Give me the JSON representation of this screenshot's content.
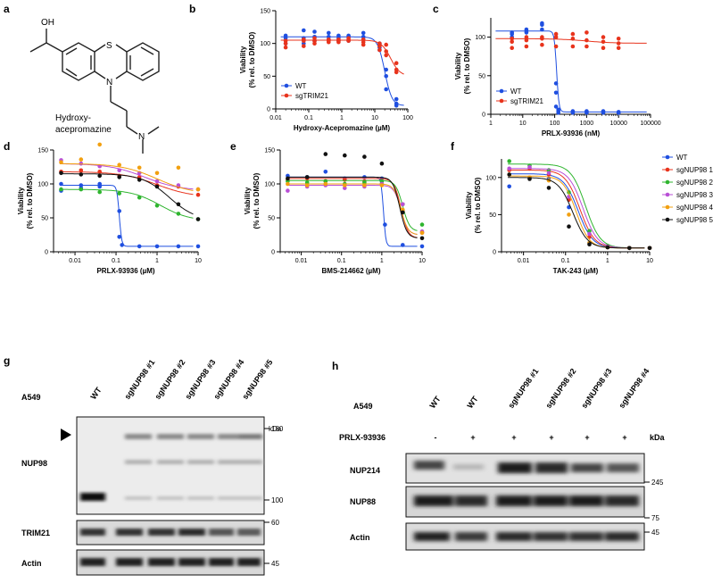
{
  "panels": {
    "a": {
      "label": "a",
      "molecule_name": [
        "Hydroxy-",
        "acepromazine"
      ],
      "atoms": {
        "oh": "OH",
        "s": "S",
        "n": "N",
        "n2": "N"
      }
    },
    "g": {
      "label": "g"
    },
    "h": {
      "label": "h"
    }
  },
  "chart_data": [
    {
      "id": "b",
      "label": "b",
      "type": "scatter",
      "xlabel": "Hydroxy-Acepromazine (µM)",
      "ylabel": [
        "Viability",
        "(% rel. to DMSO)"
      ],
      "xscale": "log",
      "xlim": [
        0.01,
        100
      ],
      "ylim": [
        0,
        150
      ],
      "xticks": [
        0.01,
        0.1,
        1,
        10,
        100
      ],
      "xticklabels": [
        "0.01",
        "0.1",
        "1",
        "10",
        "100"
      ],
      "yticks": [
        0,
        50,
        100,
        150
      ],
      "yticklabels": [
        "0",
        "50",
        "100",
        "150"
      ],
      "legend_position": "bottom-left",
      "series": [
        {
          "name": "WT",
          "color": "#1f4fe0",
          "x": [
            0.02,
            0.02,
            0.02,
            0.07,
            0.07,
            0.07,
            0.15,
            0.15,
            0.15,
            0.4,
            0.4,
            0.4,
            0.8,
            0.8,
            0.8,
            1.6,
            1.6,
            1.6,
            4.5,
            4.5,
            4.5,
            14,
            14,
            14,
            22,
            22,
            22,
            45,
            45,
            45
          ],
          "y": [
            112,
            108,
            100,
            120,
            108,
            100,
            118,
            110,
            104,
            116,
            110,
            106,
            112,
            108,
            104,
            112,
            110,
            104,
            116,
            110,
            106,
            100,
            94,
            90,
            60,
            50,
            30,
            15,
            8,
            5
          ],
          "fit": {
            "top": 110,
            "bottom": 5,
            "ic50": 20,
            "hill": 4
          }
        },
        {
          "name": "sgTRIM21",
          "color": "#e8331c",
          "x": [
            0.02,
            0.02,
            0.02,
            0.07,
            0.07,
            0.07,
            0.15,
            0.15,
            0.15,
            0.4,
            0.4,
            0.4,
            0.8,
            0.8,
            0.8,
            1.6,
            1.6,
            1.6,
            4.5,
            4.5,
            4.5,
            14,
            14,
            14,
            22,
            22,
            22,
            45,
            45,
            45
          ],
          "y": [
            104,
            100,
            94,
            106,
            104,
            96,
            108,
            104,
            100,
            106,
            104,
            102,
            106,
            104,
            102,
            108,
            106,
            104,
            106,
            102,
            98,
            100,
            96,
            90,
            98,
            88,
            82,
            70,
            60,
            56
          ],
          "fit": {
            "top": 105,
            "bottom": 50,
            "ic50": 30,
            "hill": 3
          }
        }
      ]
    },
    {
      "id": "c",
      "label": "c",
      "type": "scatter",
      "xlabel": "PRLX-93936 (nM)",
      "ylabel": [
        "Viability",
        "(% rel. to DMSO)"
      ],
      "xscale": "log",
      "xlim": [
        1,
        100000
      ],
      "ylim": [
        0,
        125
      ],
      "xticks": [
        1,
        10,
        100,
        1000,
        10000,
        100000
      ],
      "xticklabels": [
        "1",
        "10",
        "100",
        "1000",
        "10000",
        "100000"
      ],
      "yticks": [
        0,
        50,
        100
      ],
      "yticklabels": [
        "0",
        "50",
        "100"
      ],
      "legend_position": "bottom-left",
      "series": [
        {
          "name": "WT",
          "color": "#1f4fe0",
          "x": [
            4.6,
            4.6,
            4.6,
            13,
            13,
            13,
            40,
            40,
            40,
            110,
            110,
            110,
            130,
            130,
            130,
            370,
            370,
            370,
            1000,
            1000,
            1000,
            3300,
            3300,
            3300,
            10000,
            10000,
            10000
          ],
          "y": [
            100,
            104,
            106,
            110,
            108,
            106,
            118,
            116,
            110,
            40,
            28,
            10,
            6,
            4,
            2,
            4,
            3,
            2,
            4,
            3,
            2,
            4,
            3,
            2,
            3,
            2,
            2
          ],
          "fit": {
            "top": 108,
            "bottom": 3,
            "ic50": 115,
            "hill": 12
          }
        },
        {
          "name": "sgTRIM21",
          "color": "#e8331c",
          "x": [
            4.6,
            4.6,
            4.6,
            13,
            13,
            13,
            40,
            40,
            40,
            110,
            110,
            110,
            370,
            370,
            370,
            1000,
            1000,
            1000,
            3300,
            3300,
            3300,
            10000,
            10000,
            10000
          ],
          "y": [
            98,
            94,
            86,
            100,
            96,
            88,
            100,
            98,
            90,
            104,
            100,
            88,
            104,
            98,
            88,
            106,
            96,
            88,
            100,
            94,
            86,
            98,
            92,
            86
          ],
          "fit": {
            "top": 98,
            "bottom": 92,
            "ic50": 1000,
            "hill": 1
          }
        }
      ]
    },
    {
      "id": "d",
      "label": "d",
      "type": "scatter",
      "xlabel": "PRLX-93936 (µM)",
      "ylabel": [
        "Viability",
        "(% rel. to DMSO)"
      ],
      "xscale": "log",
      "xlim": [
        0.003,
        10
      ],
      "ylim": [
        0,
        150
      ],
      "xticks": [
        0.01,
        0.1,
        1,
        10
      ],
      "xticklabels": [
        "0.01",
        "0.1",
        "1",
        "10"
      ],
      "yticks": [
        0,
        50,
        100,
        150
      ],
      "yticklabels": [
        "0",
        "50",
        "100",
        "150"
      ],
      "series": [
        {
          "name": "WT",
          "color": "#1f4fe0",
          "fit": {
            "top": 98,
            "bottom": 8,
            "ic50": 0.12,
            "hill": 15
          },
          "x": [
            0.0046,
            0.0046,
            0.014,
            0.014,
            0.04,
            0.04,
            0.12,
            0.12,
            0.14,
            0.37,
            1,
            3.3,
            10
          ],
          "y": [
            100,
            90,
            98,
            94,
            100,
            96,
            60,
            22,
            10,
            8,
            8,
            8,
            8
          ]
        },
        {
          "name": "sgNUP98 1",
          "color": "#e8331c",
          "fit": {
            "top": 118,
            "bottom": 80,
            "ic50": 1,
            "hill": 1
          },
          "x": [
            0.0046,
            0.014,
            0.04,
            0.12,
            0.37,
            1,
            3.3,
            10
          ],
          "y": [
            118,
            120,
            118,
            112,
            110,
            98,
            96,
            84
          ]
        },
        {
          "name": "sgNUP98 2",
          "color": "#2fb52f",
          "fit": {
            "top": 92,
            "bottom": 45,
            "ic50": 1.2,
            "hill": 1.2
          },
          "x": [
            0.0046,
            0.014,
            0.04,
            0.12,
            0.37,
            1,
            3.3,
            10
          ],
          "y": [
            92,
            92,
            88,
            86,
            80,
            68,
            56,
            48
          ]
        },
        {
          "name": "sgNUP98 3",
          "color": "#b94fd6",
          "fit": {
            "top": 130,
            "bottom": 90,
            "ic50": 0.5,
            "hill": 1
          },
          "x": [
            0.0046,
            0.014,
            0.04,
            0.12,
            0.37,
            1,
            3.3,
            10
          ],
          "y": [
            135,
            130,
            126,
            120,
            116,
            104,
            98,
            92
          ]
        },
        {
          "name": "sgNUP98 4",
          "color": "#f2a010",
          "fit": {
            "top": 130,
            "bottom": 85,
            "ic50": 1,
            "hill": 1
          },
          "x": [
            0.0046,
            0.014,
            0.04,
            0.12,
            0.37,
            1,
            3.3,
            10
          ],
          "y": [
            132,
            136,
            158,
            128,
            124,
            116,
            124,
            92
          ]
        },
        {
          "name": "sgNUP98 5",
          "color": "#111111",
          "fit": {
            "top": 115,
            "bottom": 45,
            "ic50": 2,
            "hill": 1.3
          },
          "x": [
            0.0046,
            0.014,
            0.04,
            0.12,
            0.37,
            1,
            3.3,
            10
          ],
          "y": [
            116,
            114,
            112,
            110,
            106,
            96,
            70,
            48
          ]
        }
      ]
    },
    {
      "id": "e",
      "label": "e",
      "type": "scatter",
      "xlabel": "BMS-214662 (µM)",
      "ylabel": [
        "Viability",
        "(% rel. to DMSO)"
      ],
      "xscale": "log",
      "xlim": [
        0.003,
        10
      ],
      "ylim": [
        0,
        150
      ],
      "xticks": [
        0.01,
        0.1,
        1,
        10
      ],
      "xticklabels": [
        "0.01",
        "0.1",
        "1",
        "10"
      ],
      "yticks": [
        0,
        50,
        100,
        150
      ],
      "yticklabels": [
        "0",
        "50",
        "100",
        "150"
      ],
      "series": [
        {
          "name": "WT",
          "color": "#1f4fe0",
          "fit": {
            "top": 110,
            "bottom": 8,
            "ic50": 1.1,
            "hill": 15
          },
          "x": [
            0.0046,
            0.014,
            0.04,
            0.12,
            0.37,
            1,
            1.2,
            3.3,
            10
          ],
          "y": [
            112,
            110,
            118,
            108,
            110,
            108,
            40,
            10,
            8
          ]
        },
        {
          "name": "sgNUP98 1",
          "color": "#e8331c",
          "fit": {
            "top": 108,
            "bottom": 20,
            "ic50": 3,
            "hill": 5
          },
          "x": [
            0.0046,
            0.014,
            0.04,
            0.12,
            0.37,
            1,
            3.3,
            10
          ],
          "y": [
            106,
            108,
            104,
            106,
            104,
            100,
            60,
            28
          ]
        },
        {
          "name": "sgNUP98 2",
          "color": "#2fb52f",
          "fit": {
            "top": 105,
            "bottom": 30,
            "ic50": 3.3,
            "hill": 5
          },
          "x": [
            0.0046,
            0.014,
            0.04,
            0.12,
            0.37,
            1,
            3.3,
            10
          ],
          "y": [
            104,
            102,
            104,
            100,
            102,
            104,
            70,
            40
          ]
        },
        {
          "name": "sgNUP98 3",
          "color": "#b94fd6",
          "fit": {
            "top": 98,
            "bottom": 25,
            "ic50": 3,
            "hill": 5
          },
          "x": [
            0.0046,
            0.014,
            0.04,
            0.12,
            0.37,
            1,
            3.3,
            10
          ],
          "y": [
            90,
            96,
            98,
            94,
            96,
            100,
            70,
            30
          ]
        },
        {
          "name": "sgNUP98 4",
          "color": "#f2a010",
          "fit": {
            "top": 100,
            "bottom": 25,
            "ic50": 3,
            "hill": 5
          },
          "x": [
            0.0046,
            0.014,
            0.04,
            0.12,
            0.37,
            1,
            3.3,
            10
          ],
          "y": [
            100,
            98,
            100,
            98,
            98,
            98,
            62,
            28
          ]
        },
        {
          "name": "sgNUP98 5",
          "color": "#111111",
          "fit": {
            "top": 110,
            "bottom": 20,
            "ic50": 2.8,
            "hill": 5
          },
          "x": [
            0.0046,
            0.014,
            0.04,
            0.12,
            0.37,
            1,
            3.3,
            10
          ],
          "y": [
            108,
            110,
            144,
            142,
            140,
            130,
            58,
            20
          ]
        }
      ]
    },
    {
      "id": "f",
      "label": "f",
      "type": "scatter",
      "xlabel": "TAK-243 (µM)",
      "ylabel": [
        "Viability",
        "(% rel. to DMSO)"
      ],
      "xscale": "log",
      "xlim": [
        0.003,
        10
      ],
      "ylim": [
        0,
        125
      ],
      "xticks": [
        0.01,
        0.1,
        1,
        10
      ],
      "xticklabels": [
        "0.01",
        "0.1",
        "1",
        "10"
      ],
      "yticks": [
        0,
        50,
        100
      ],
      "yticklabels": [
        "0",
        "50",
        "100"
      ],
      "legend_position": "right",
      "series": [
        {
          "name": "WT",
          "color": "#1f4fe0",
          "fit": {
            "top": 105,
            "bottom": 5,
            "ic50": 0.2,
            "hill": 2.5
          },
          "x": [
            0.0046,
            0.014,
            0.04,
            0.12,
            0.37,
            1,
            3.3,
            10
          ],
          "y": [
            88,
            100,
            98,
            60,
            12,
            6,
            5,
            5
          ]
        },
        {
          "name": "sgNUP98 1",
          "color": "#e8331c",
          "fit": {
            "top": 110,
            "bottom": 5,
            "ic50": 0.22,
            "hill": 2.5
          },
          "x": [
            0.0046,
            0.014,
            0.04,
            0.12,
            0.37,
            1,
            3.3,
            10
          ],
          "y": [
            110,
            112,
            104,
            70,
            20,
            6,
            5,
            5
          ]
        },
        {
          "name": "sgNUP98 2",
          "color": "#2fb52f",
          "fit": {
            "top": 118,
            "bottom": 5,
            "ic50": 0.3,
            "hill": 2.5
          },
          "x": [
            0.0046,
            0.014,
            0.04,
            0.12,
            0.37,
            1,
            3.3,
            10
          ],
          "y": [
            122,
            116,
            110,
            80,
            28,
            8,
            5,
            5
          ]
        },
        {
          "name": "sgNUP98 3",
          "color": "#b94fd6",
          "fit": {
            "top": 112,
            "bottom": 5,
            "ic50": 0.26,
            "hill": 2.5
          },
          "x": [
            0.0046,
            0.014,
            0.04,
            0.12,
            0.37,
            1,
            3.3,
            10
          ],
          "y": [
            112,
            114,
            106,
            74,
            24,
            7,
            5,
            5
          ]
        },
        {
          "name": "sgNUP98 4",
          "color": "#f2a010",
          "fit": {
            "top": 102,
            "bottom": 5,
            "ic50": 0.18,
            "hill": 2.8
          },
          "x": [
            0.0046,
            0.014,
            0.04,
            0.12,
            0.37,
            1,
            3.3,
            10
          ],
          "y": [
            104,
            100,
            96,
            50,
            12,
            6,
            5,
            5
          ]
        },
        {
          "name": "sgNUP98 5",
          "color": "#111111",
          "fit": {
            "top": 100,
            "bottom": 5,
            "ic50": 0.15,
            "hill": 2.5
          },
          "x": [
            0.0046,
            0.014,
            0.04,
            0.12,
            0.37,
            1,
            3.3,
            10
          ],
          "y": [
            104,
            98,
            86,
            34,
            10,
            6,
            5,
            5
          ]
        }
      ]
    }
  ],
  "blot_g": {
    "cell_line": "A549",
    "lanes": [
      "WT",
      "sgNUP98 #1",
      "sgNUP98 #2",
      "sgNUP98 #3",
      "sgNUP98 #4",
      "sgNUP98 #5"
    ],
    "mw_unit": "kDa",
    "rows": [
      {
        "label": "NUP98",
        "markers": [
          "180",
          "100"
        ]
      },
      {
        "label": "TRIM21",
        "markers": [
          "60"
        ]
      },
      {
        "label": "Actin",
        "markers": [
          "45"
        ]
      }
    ]
  },
  "blot_h": {
    "cell_line": "A549",
    "lanes": [
      "WT",
      "WT",
      "sgNUP98 #1",
      "sgNUP98 #2",
      "sgNUP98 #3",
      "sgNUP98 #4"
    ],
    "treatment_label": "PRLX-93936",
    "treatment": [
      "-",
      "+",
      "+",
      "+",
      "+",
      "+"
    ],
    "mw_unit": "kDa",
    "rows": [
      {
        "label": "NUP214",
        "markers": [
          "245"
        ]
      },
      {
        "label": "NUP88",
        "markers": [
          "75"
        ]
      },
      {
        "label": "Actin",
        "markers": [
          "45"
        ]
      }
    ]
  }
}
